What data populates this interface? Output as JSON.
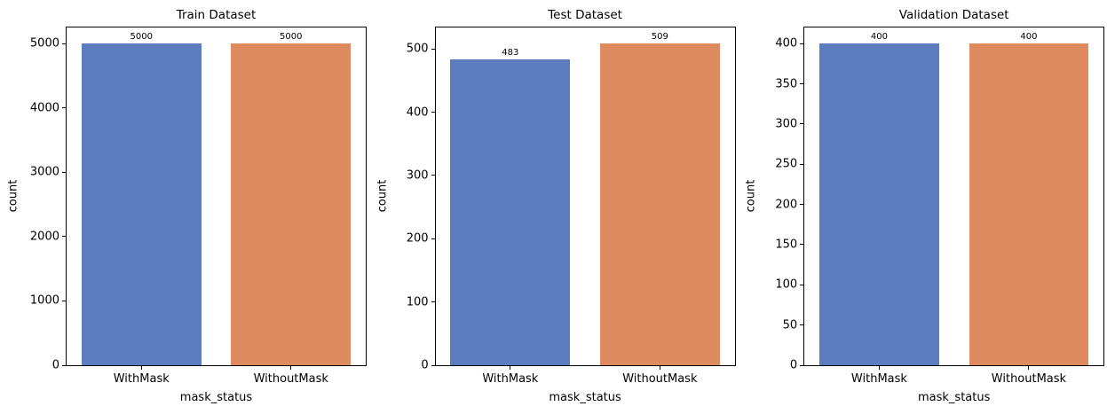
{
  "palette": {
    "blue": "#5b7cbe",
    "orange": "#dd8a5e"
  },
  "chart_data": [
    {
      "type": "bar",
      "title": "Train Dataset",
      "xlabel": "mask_status",
      "ylabel": "count",
      "categories": [
        "WithMask",
        "WithoutMask"
      ],
      "values": [
        5000,
        5000
      ],
      "bar_colors": [
        "#5b7cbe",
        "#dd8a5e"
      ],
      "yticks": [
        0,
        1000,
        2000,
        3000,
        4000,
        5000
      ],
      "ylim": [
        0,
        5250
      ],
      "grid": false,
      "legend": null
    },
    {
      "type": "bar",
      "title": "Test Dataset",
      "xlabel": "mask_status",
      "ylabel": "count",
      "categories": [
        "WithMask",
        "WithoutMask"
      ],
      "values": [
        483,
        509
      ],
      "bar_colors": [
        "#5b7cbe",
        "#dd8a5e"
      ],
      "yticks": [
        0,
        100,
        200,
        300,
        400,
        500
      ],
      "ylim": [
        0,
        534
      ],
      "grid": false,
      "legend": null
    },
    {
      "type": "bar",
      "title": "Validation Dataset",
      "xlabel": "mask_status",
      "ylabel": "count",
      "categories": [
        "WithMask",
        "WithoutMask"
      ],
      "values": [
        400,
        400
      ],
      "bar_colors": [
        "#5b7cbe",
        "#dd8a5e"
      ],
      "yticks": [
        0,
        50,
        100,
        150,
        200,
        250,
        300,
        350,
        400
      ],
      "ylim": [
        0,
        420
      ],
      "grid": false,
      "legend": null
    }
  ]
}
